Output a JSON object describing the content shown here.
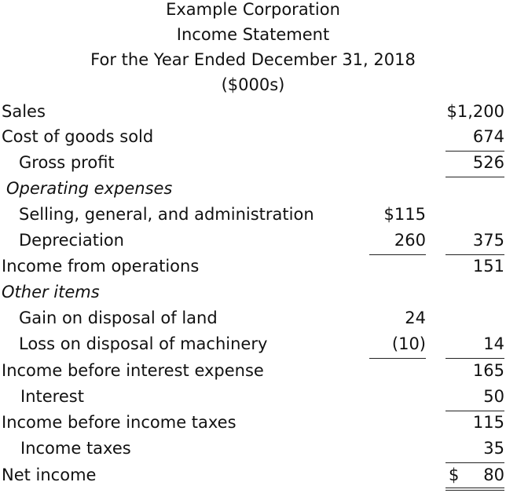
{
  "header": {
    "company": "Example Corporation",
    "statement": "Income Statement",
    "period": "For the Year Ended December 31, 2018",
    "units": "($000s)"
  },
  "rows": {
    "sales": {
      "label": "Sales",
      "col2": "$1,200"
    },
    "cogs": {
      "label": "Cost of goods sold",
      "col2": "674"
    },
    "gross_profit": {
      "label": "Gross profit",
      "col2": "526"
    },
    "opex": {
      "label": "Operating expenses"
    },
    "sga": {
      "label": "Selling, general, and administration",
      "col1": "$115"
    },
    "depreciation": {
      "label": "Depreciation",
      "col1": "260",
      "col2": "375"
    },
    "income_ops": {
      "label": "Income from operations",
      "col2": "151"
    },
    "other_items": {
      "label": "Other items"
    },
    "gain_land": {
      "label": "Gain on disposal of land",
      "col1": "24"
    },
    "loss_machinery": {
      "label": "Loss on disposal of machinery",
      "col1": "(10)",
      "col2": "14"
    },
    "income_before_interest": {
      "label": "Income before interest expense",
      "col2": "165"
    },
    "interest": {
      "label": "Interest",
      "col2": "50"
    },
    "income_before_taxes": {
      "label": "Income before income taxes",
      "col2": "115"
    },
    "income_taxes": {
      "label": "Income taxes",
      "col2": "35"
    },
    "net_income": {
      "label": "Net income",
      "currency": "$",
      "col2": "80"
    }
  }
}
